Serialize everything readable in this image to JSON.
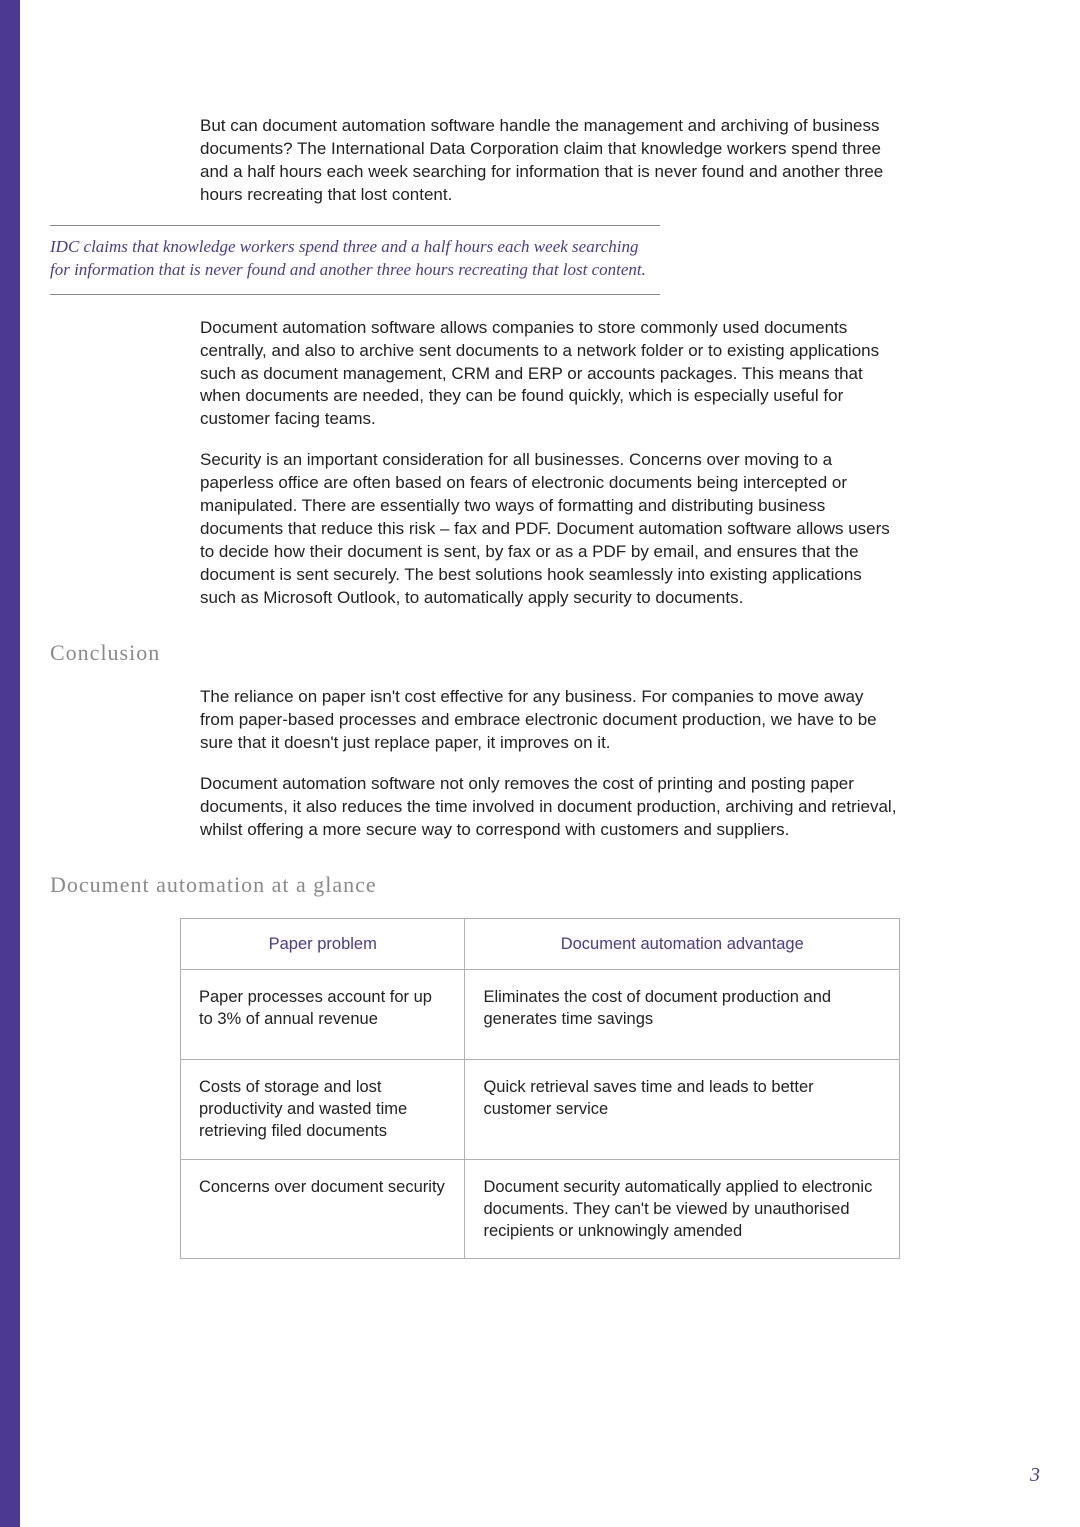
{
  "colors": {
    "accent": "#4b3a8f",
    "rule": "#888888",
    "table_border": "#b0b0b0",
    "heading_gray": "#8a8a8a",
    "body_text": "#222222",
    "page_bg": "#ffffff"
  },
  "paragraphs": {
    "p1": "But can document automation software handle the management and archiving of business documents? The International Data Corporation claim that knowledge workers spend three and a half hours each week searching for information that is never found and another three hours recreating that lost content.",
    "pullquote": "IDC claims that knowledge workers spend three and a half hours each week searching for information that is never found and another three hours recreating that lost content.",
    "p2": "Document automation software allows companies to store commonly used documents centrally, and also to archive sent documents to a network folder or to existing applications such as document management, CRM and ERP or accounts packages. This means that when documents are needed, they can be found quickly, which is especially useful for customer facing teams.",
    "p3": "Security is an important consideration for all businesses. Concerns over moving to a paperless office are often based on fears of electronic documents being intercepted or manipulated. There are essentially two ways of formatting and distributing business documents that reduce this risk – fax and PDF. Document automation software allows users to decide how their document is sent, by fax or as a PDF by email, and ensures that the document is sent securely. The best solutions hook seamlessly into existing applications such as Microsoft Outlook, to automatically apply security to documents.",
    "p4": "The reliance on paper isn't cost effective for any business. For companies to move away from paper-based processes and embrace electronic document production, we have to be sure that it doesn't just replace paper, it improves on it.",
    "p5": "Document automation software not only removes the cost of printing and posting paper documents, it also reduces the time involved in document production, archiving and retrieval, whilst offering a more secure way to correspond with customers and suppliers."
  },
  "headings": {
    "conclusion": "Conclusion",
    "glance": "Document automation at a glance"
  },
  "table": {
    "columns": [
      "Paper problem",
      "Document automation advantage"
    ],
    "rows": [
      [
        "Paper processes account for up to 3% of annual revenue",
        "Eliminates the cost of document production and generates time savings"
      ],
      [
        "Costs of storage and lost productivity and wasted time retrieving filed documents",
        "Quick retrieval saves time and leads to better customer service"
      ],
      [
        "Concerns over document security",
        "Document security automatically applied to electronic documents. They can't be viewed by unauthorised recipients or unknowingly amended"
      ]
    ],
    "header_color": "#4b3a8f",
    "border_color": "#b0b0b0",
    "font_size": 16.5
  },
  "page_number": "3"
}
